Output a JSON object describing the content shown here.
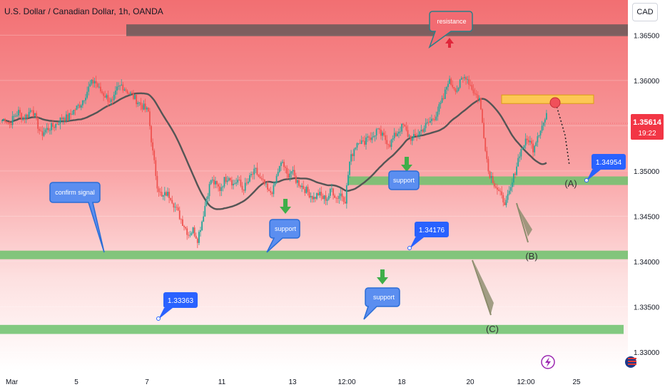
{
  "header": {
    "symbol_title": "U.S. Dollar / Canadian Dollar, 1h, OANDA",
    "currency_button": "CAD"
  },
  "price_label": {
    "value": "1.35614",
    "countdown": "19:22"
  },
  "colors": {
    "bg_top": "#f47d80",
    "bg_bottom": "#ffffff",
    "zone_green": "#6cc26c",
    "zone_dark": "#555555",
    "zone_yellow": "#ffd24a",
    "candle_up": "#26a69a",
    "candle_down": "#ef5350",
    "ma_line": "#555555",
    "callout_blue": "#4d79ff",
    "price_tag_red": "#f23645"
  },
  "chart_data": {
    "type": "candlestick",
    "yaxis": {
      "ticks": [
        "1.36500",
        "1.36000",
        "1.35500",
        "1.35000",
        "1.34500",
        "1.34000",
        "1.33500",
        "1.33000"
      ]
    },
    "xaxis": {
      "ticks": [
        "Mar",
        "5",
        "7",
        "11",
        "13",
        "12:00",
        "18",
        "20",
        "12:00",
        "25"
      ]
    },
    "zones": [
      {
        "kind": "resistance",
        "low": 1.3649,
        "high": 1.3662
      },
      {
        "kind": "target",
        "low": 1.3578,
        "high": 1.3584
      },
      {
        "kind": "support",
        "low": 1.3486,
        "high": 1.3494
      },
      {
        "kind": "support",
        "low": 1.3404,
        "high": 1.3412
      },
      {
        "kind": "support",
        "low": 1.332,
        "high": 1.333
      }
    ],
    "annotations": [
      {
        "id": "resistance",
        "text": "resistance"
      },
      {
        "id": "confirm",
        "text": "confirm signal"
      },
      {
        "id": "support1",
        "text": "support"
      },
      {
        "id": "support2",
        "text": "support"
      },
      {
        "id": "support3",
        "text": "support"
      },
      {
        "id": "p1",
        "text": "1.34954"
      },
      {
        "id": "p2",
        "text": "1.34176"
      },
      {
        "id": "p3",
        "text": "1.33363"
      },
      {
        "id": "A",
        "text": "(A)"
      },
      {
        "id": "B",
        "text": "(B)"
      },
      {
        "id": "C",
        "text": "(C)"
      }
    ],
    "price_path": [
      1.3555,
      1.3558,
      1.3552,
      1.356,
      1.3565,
      1.3558,
      1.3562,
      1.357,
      1.3555,
      1.354,
      1.3545,
      1.3548,
      1.355,
      1.3555,
      1.356,
      1.3558,
      1.3565,
      1.357,
      1.3575,
      1.3585,
      1.3595,
      1.36,
      1.359,
      1.3585,
      1.358,
      1.3575,
      1.359,
      1.3595,
      1.359,
      1.3585,
      1.358,
      1.3575,
      1.357,
      1.3565,
      1.352,
      1.3485,
      1.347,
      1.3475,
      1.3472,
      1.346,
      1.345,
      1.344,
      1.343,
      1.3435,
      1.3425,
      1.3445,
      1.347,
      1.349,
      1.3485,
      1.348,
      1.349,
      1.3495,
      1.3485,
      1.349,
      1.348,
      1.3485,
      1.3495,
      1.35,
      1.349,
      1.3485,
      1.3475,
      1.348,
      1.35,
      1.351,
      1.3495,
      1.35,
      1.349,
      1.3485,
      1.348,
      1.3475,
      1.347,
      1.3475,
      1.347,
      1.347,
      1.348,
      1.347,
      1.3475,
      1.3468,
      1.351,
      1.3525,
      1.3535,
      1.353,
      1.354,
      1.3535,
      1.3545,
      1.354,
      1.3535,
      1.353,
      1.3538,
      1.3545,
      1.355,
      1.354,
      1.3535,
      1.354,
      1.3545,
      1.355,
      1.3555,
      1.356,
      1.357,
      1.358,
      1.36,
      1.3595,
      1.359,
      1.36,
      1.3605,
      1.3595,
      1.3585,
      1.358,
      1.354,
      1.35,
      1.349,
      1.348,
      1.347,
      1.3465,
      1.348,
      1.35,
      1.352,
      1.353,
      1.3535,
      1.3525,
      1.354,
      1.355,
      1.356
    ]
  }
}
